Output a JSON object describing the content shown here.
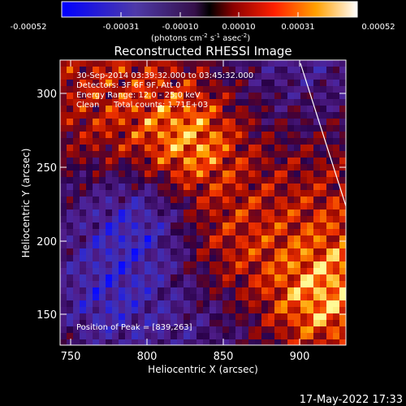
{
  "colorbar": {
    "tick_labels": [
      "-0.00052",
      "-0.00031",
      "-0.00010",
      "0.00010",
      "0.00031",
      "0.00052"
    ],
    "units": {
      "open": "(photons cm",
      "exp1": "-2",
      "mid1": " s",
      "exp2": "-1",
      "mid2": " asec",
      "exp3": "-2",
      "close": ")"
    }
  },
  "plot": {
    "title": "Reconstructed RHESSI Image",
    "xlabel": "Heliocentric X (arcsec)",
    "ylabel": "Heliocentric Y (arcsec)",
    "xticks": [
      "750",
      "800",
      "850",
      "900"
    ],
    "yticks": [
      "150",
      "200",
      "250",
      "300"
    ]
  },
  "annotations": {
    "time_range": "30-Sep-2014 03:39:32.000 to 03:45:32.000",
    "detectors": "Detectors: 3F 6F 9F, Att 0",
    "energy_range": "Energy Range: 12.0 - 25.0 keV",
    "method": "Clean",
    "total_counts": "Total counts: 1.71E+03",
    "peak": "Position of Peak = [839,263]"
  },
  "footer": {
    "timestamp": "17-May-2022 17:33"
  }
}
